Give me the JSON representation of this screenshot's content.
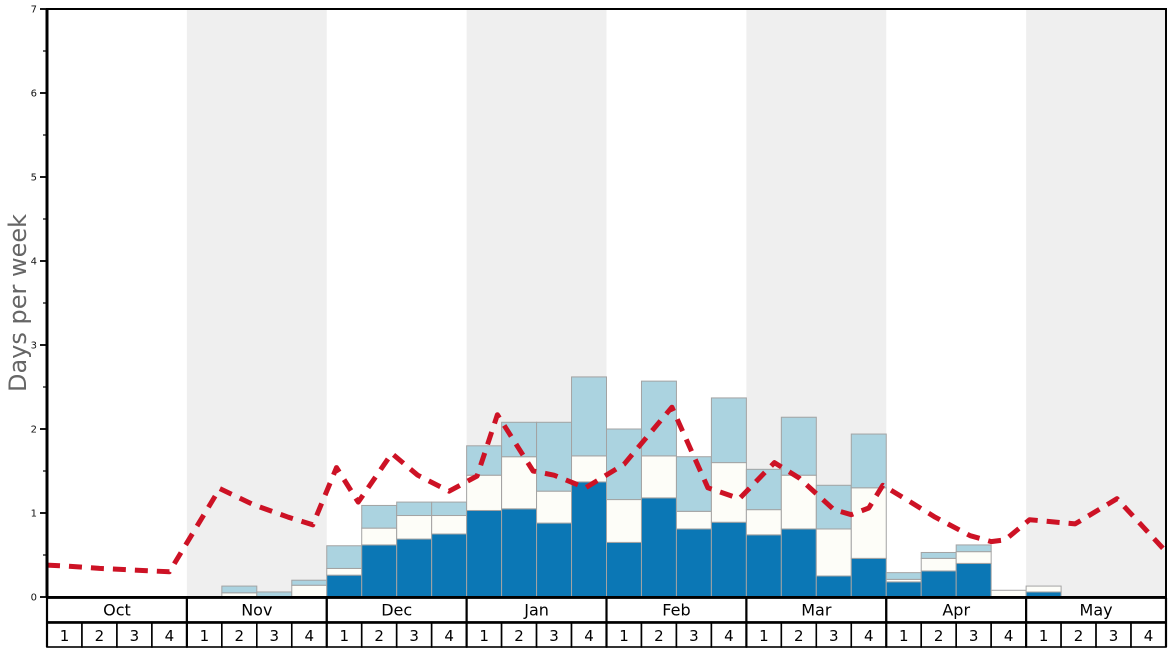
{
  "chart_data": {
    "type": "bar",
    "subtype": "stacked-bars-with-dashed-line-overlay",
    "title": "",
    "ylabel": "Days per week",
    "xlabel": "",
    "ylim": [
      0,
      7
    ],
    "yticks": [
      "0",
      "1",
      "2",
      "3",
      "4",
      "5",
      "6",
      "7"
    ],
    "minor_tick_step": 0.5,
    "grid": false,
    "legend": "none",
    "months": [
      "Oct",
      "Nov",
      "Dec",
      "Jan",
      "Feb",
      "Mar",
      "Apr",
      "May"
    ],
    "week_labels": [
      "1",
      "2",
      "3",
      "4"
    ],
    "weeks_per_month": 4,
    "shaded_months": [
      "Nov",
      "Jan",
      "Mar",
      "May"
    ],
    "stacked_series": [
      {
        "name": "dark-blue-segment",
        "color": "#0b77b5",
        "values": [
          0,
          0,
          0,
          0,
          0,
          0,
          0,
          0,
          0.26,
          0.62,
          0.69,
          0.75,
          1.03,
          1.05,
          0.88,
          1.37,
          0.65,
          1.18,
          0.81,
          0.89,
          0.74,
          0.81,
          0.25,
          0.46,
          0.18,
          0.31,
          0.4,
          0,
          0.06,
          0,
          0,
          0
        ]
      },
      {
        "name": "white-segment",
        "color": "#fdfdf8",
        "values": [
          0,
          0,
          0,
          0,
          0,
          0.05,
          0,
          0.14,
          0.08,
          0.2,
          0.28,
          0.22,
          0.42,
          0.62,
          0.38,
          0.31,
          0.51,
          0.5,
          0.21,
          0.71,
          0.3,
          0.64,
          0.56,
          0.84,
          0.03,
          0.15,
          0.14,
          0.08,
          0.07,
          0,
          0,
          0
        ]
      },
      {
        "name": "light-blue-segment",
        "color": "#abd3e0",
        "values": [
          0,
          0,
          0,
          0,
          0,
          0.08,
          0.06,
          0.06,
          0.27,
          0.27,
          0.16,
          0.16,
          0.35,
          0.41,
          0.82,
          0.94,
          0.84,
          0.89,
          0.65,
          0.77,
          0.48,
          0.69,
          0.52,
          0.64,
          0.08,
          0.07,
          0.08,
          0,
          0,
          0,
          0,
          0
        ]
      }
    ],
    "bar_totals": [
      0,
      0,
      0,
      0,
      0,
      0.13,
      0.06,
      0.2,
      0.61,
      1.09,
      1.13,
      1.13,
      1.8,
      2.08,
      2.08,
      2.62,
      2.0,
      2.57,
      1.67,
      2.37,
      1.52,
      2.14,
      1.33,
      1.94,
      0.29,
      0.53,
      0.62,
      0.08,
      0.13,
      0,
      0,
      0
    ],
    "overlay_line": {
      "name": "red-dashed-line",
      "color": "#cd1225",
      "style": "dashed",
      "points_week_units": [
        [
          0,
          0.38
        ],
        [
          0.5,
          0.37
        ],
        [
          1.5,
          0.34
        ],
        [
          2.5,
          0.32
        ],
        [
          3.5,
          0.3
        ],
        [
          4.94,
          1.29
        ],
        [
          5.9,
          1.1
        ],
        [
          6.9,
          0.95
        ],
        [
          7.6,
          0.86
        ],
        [
          8.28,
          1.54
        ],
        [
          8.9,
          1.13
        ],
        [
          9.86,
          1.71
        ],
        [
          10.6,
          1.45
        ],
        [
          11.5,
          1.26
        ],
        [
          12.3,
          1.44
        ],
        [
          12.88,
          2.17
        ],
        [
          13.9,
          1.5
        ],
        [
          14.5,
          1.45
        ],
        [
          15.4,
          1.3
        ],
        [
          16.5,
          1.58
        ],
        [
          17.87,
          2.26
        ],
        [
          18.9,
          1.3
        ],
        [
          19.8,
          1.17
        ],
        [
          20.8,
          1.6
        ],
        [
          21.5,
          1.42
        ],
        [
          22.5,
          1.04
        ],
        [
          23.0,
          0.98
        ],
        [
          23.5,
          1.06
        ],
        [
          23.9,
          1.33
        ],
        [
          24.5,
          1.18
        ],
        [
          25.4,
          0.95
        ],
        [
          26.4,
          0.73
        ],
        [
          27.0,
          0.66
        ],
        [
          27.4,
          0.68
        ],
        [
          28.1,
          0.92
        ],
        [
          29.4,
          0.87
        ],
        [
          30.6,
          1.17
        ],
        [
          32,
          0.54
        ]
      ]
    },
    "colors": {
      "band_gray": "#efefef",
      "bar_border": "#a3a3a3",
      "frame": "#000000",
      "tick_text": "#111111",
      "ylabel_text": "#666666",
      "label_box_bg": "#ffffff",
      "label_box_border": "#000000"
    }
  }
}
